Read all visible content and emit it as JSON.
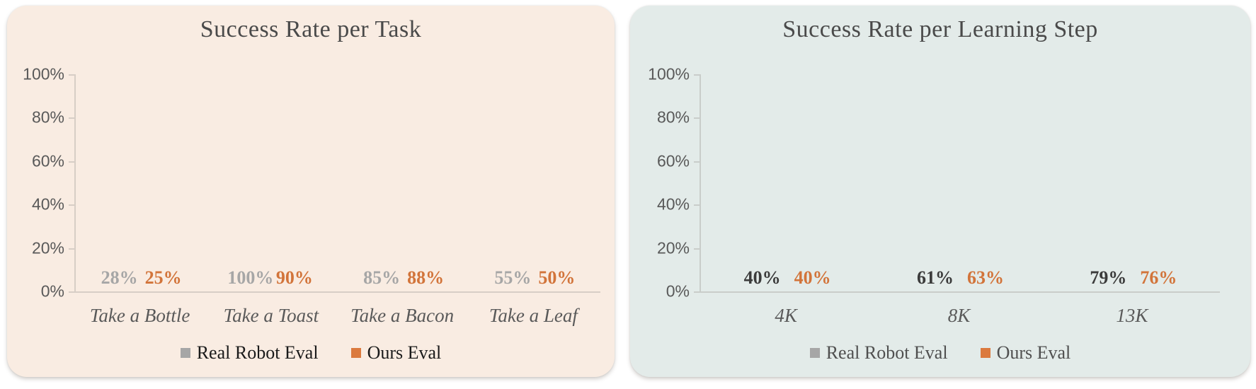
{
  "styles": {
    "page_bg": "#ffffff",
    "title_color": "#4a4a4a",
    "y_tick_label_color": "#595959",
    "x_label_color": "#595959",
    "axis_color": "#b9b5af",
    "bar_gray": "#A6A6A6",
    "bar_orange": "#DB7A3E"
  },
  "chart_data": [
    {
      "type": "bar",
      "title": "Success Rate per Task",
      "panel_bg": "#F9ECE2",
      "categories": [
        "Take a Bottle",
        "Take a Toast",
        "Take a Bacon",
        "Take a Leaf"
      ],
      "series": [
        {
          "name": "Real Robot Eval",
          "color": "#A6A6A6",
          "label_color": "#A6A6A6",
          "values": [
            28,
            100,
            85,
            55
          ]
        },
        {
          "name": "Ours Eval",
          "color": "#DB7A3E",
          "label_color": "#D2743A",
          "values": [
            25,
            90,
            88,
            50
          ]
        }
      ],
      "yticks": [
        "0%",
        "20%",
        "40%",
        "60%",
        "80%",
        "100%"
      ],
      "ylim": [
        0,
        100
      ],
      "value_suffix": "%",
      "grid": false,
      "legend_position": "bottom",
      "legend_text_color": "#1A1A1A"
    },
    {
      "type": "bar",
      "title": "Success Rate per Learning Step",
      "panel_bg": "#E3EBE9",
      "categories": [
        "4K",
        "8K",
        "13K"
      ],
      "series": [
        {
          "name": "Real Robot Eval",
          "color": "#A6A6A6",
          "label_color": "#3B3B3B",
          "values": [
            40,
            61,
            79
          ]
        },
        {
          "name": "Ours Eval",
          "color": "#DB7A3E",
          "label_color": "#D2743A",
          "values": [
            40,
            63,
            76
          ]
        }
      ],
      "yticks": [
        "0%",
        "20%",
        "40%",
        "60%",
        "80%",
        "100%"
      ],
      "ylim": [
        0,
        100
      ],
      "value_suffix": "%",
      "grid": false,
      "legend_position": "bottom",
      "legend_text_color": "#4F4F4F"
    }
  ]
}
